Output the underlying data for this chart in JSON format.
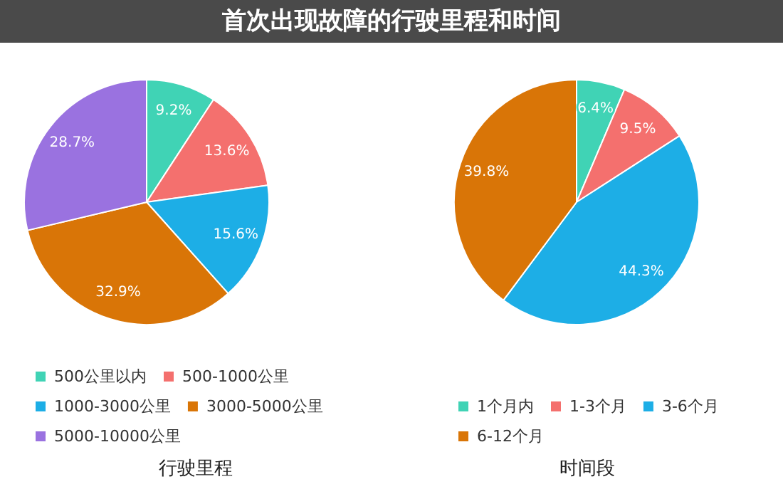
{
  "chart_data": [
    {
      "type": "pie",
      "title": "首次出现故障的行驶里程和时间",
      "xlabel": "行驶里程",
      "categories": [
        "500公里以内",
        "500-1000公里",
        "1000-3000公里",
        "3000-5000公里",
        "5000-10000公里"
      ],
      "values": [
        9.2,
        13.6,
        15.6,
        32.9,
        28.7
      ],
      "value_labels": [
        "9.2%",
        "13.6%",
        "15.6%",
        "32.9%",
        "28.7%"
      ],
      "colors": [
        "#40d3b5",
        "#f4706e",
        "#1daee6",
        "#d97507",
        "#9a72e0"
      ],
      "legend": "bottom"
    },
    {
      "type": "pie",
      "xlabel": "时间段",
      "categories": [
        "1个月内",
        "1-3个月",
        "3-6个月",
        "6-12个月"
      ],
      "values": [
        6.4,
        9.5,
        44.3,
        39.8
      ],
      "value_labels": [
        "6.4%",
        "9.5%",
        "44.3%",
        "39.8%"
      ],
      "colors": [
        "#40d3b5",
        "#f4706e",
        "#1daee6",
        "#d97507"
      ],
      "legend": "bottom"
    }
  ]
}
